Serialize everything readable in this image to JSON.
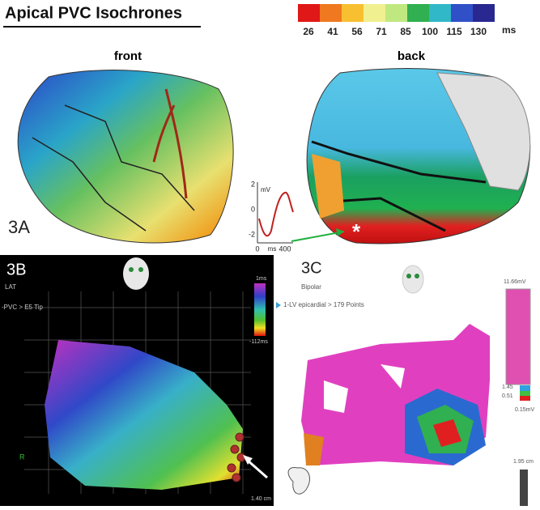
{
  "panel_3a": {
    "title": "Apical PVC Isochrones",
    "colorbar": {
      "ticks": [
        26,
        41,
        56,
        71,
        85,
        100,
        115,
        130
      ],
      "unit": "ms"
    },
    "views": [
      "front",
      "back"
    ],
    "label": "3A",
    "trace": {
      "y_label": "mV",
      "yticks": [
        2,
        0,
        -2
      ],
      "x_label": "ms",
      "xticks": [
        0,
        400
      ]
    }
  },
  "panel_3b": {
    "label": "3B",
    "mode": "LAT",
    "catheter": "-PVC > E5 Tip",
    "scale_top": "1ms",
    "scale_bottom": "-112ms",
    "marker": "R",
    "scale_length": "1.40 cm"
  },
  "panel_3c": {
    "label": "3C",
    "mode": "Bipolar",
    "map_name": "1-LV epicardial > 179 Points",
    "scale_top": "11.66mV",
    "scale_mid_high": "1.45",
    "scale_mid_low": "0.51",
    "scale_bottom": "0.15mV",
    "scale_length": "1.95 cm"
  }
}
